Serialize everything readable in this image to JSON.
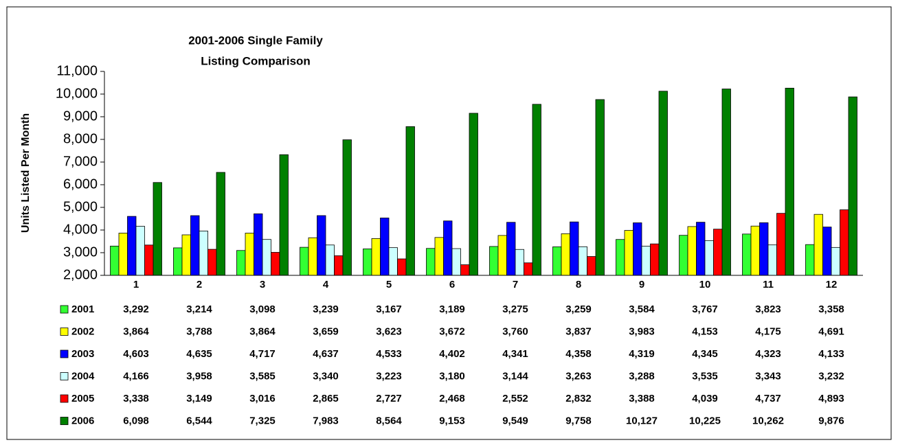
{
  "chart_data": {
    "type": "bar",
    "title": [
      "2001-2006 Single Family",
      "Listing Comparison"
    ],
    "y_label": "Units Listed Per Month",
    "categories": [
      "1",
      "2",
      "3",
      "4",
      "5",
      "6",
      "7",
      "8",
      "9",
      "10",
      "11",
      "12"
    ],
    "ylim": [
      2000,
      11000
    ],
    "yticks": [
      {
        "value": 2000,
        "label": "2,000"
      },
      {
        "value": 3000,
        "label": "3,000"
      },
      {
        "value": 4000,
        "label": "4,000"
      },
      {
        "value": 5000,
        "label": "5,000"
      },
      {
        "value": 6000,
        "label": "6,000"
      },
      {
        "value": 7000,
        "label": "7,000"
      },
      {
        "value": 8000,
        "label": "8,000"
      },
      {
        "value": 9000,
        "label": "9,000"
      },
      {
        "value": 10000,
        "label": "10,000"
      },
      {
        "value": 11000,
        "label": "11,000"
      }
    ],
    "grid": false,
    "series": [
      {
        "name": "2001",
        "color": "#33ff33",
        "values": [
          3292,
          3214,
          3098,
          3239,
          3167,
          3189,
          3275,
          3259,
          3584,
          3767,
          3823,
          3358
        ],
        "value_labels": [
          "3,292",
          "3,214",
          "3,098",
          "3,239",
          "3,167",
          "3,189",
          "3,275",
          "3,259",
          "3,584",
          "3,767",
          "3,823",
          "3,358"
        ]
      },
      {
        "name": "2002",
        "color": "#ffff00",
        "values": [
          3864,
          3788,
          3864,
          3659,
          3623,
          3672,
          3760,
          3837,
          3983,
          4153,
          4175,
          4691
        ],
        "value_labels": [
          "3,864",
          "3,788",
          "3,864",
          "3,659",
          "3,623",
          "3,672",
          "3,760",
          "3,837",
          "3,983",
          "4,153",
          "4,175",
          "4,691"
        ]
      },
      {
        "name": "2003",
        "color": "#0000ff",
        "values": [
          4603,
          4635,
          4717,
          4637,
          4533,
          4402,
          4341,
          4358,
          4319,
          4345,
          4323,
          4133
        ],
        "value_labels": [
          "4,603",
          "4,635",
          "4,717",
          "4,637",
          "4,533",
          "4,402",
          "4,341",
          "4,358",
          "4,319",
          "4,345",
          "4,323",
          "4,133"
        ]
      },
      {
        "name": "2004",
        "color": "#ccffff",
        "values": [
          4166,
          3958,
          3585,
          3340,
          3223,
          3180,
          3144,
          3263,
          3288,
          3535,
          3343,
          3232
        ],
        "value_labels": [
          "4,166",
          "3,958",
          "3,585",
          "3,340",
          "3,223",
          "3,180",
          "3,144",
          "3,263",
          "3,288",
          "3,535",
          "3,343",
          "3,232"
        ]
      },
      {
        "name": "2005",
        "color": "#ff0000",
        "values": [
          3338,
          3149,
          3016,
          2865,
          2727,
          2468,
          2552,
          2832,
          3388,
          4039,
          4737,
          4893
        ],
        "value_labels": [
          "3,338",
          "3,149",
          "3,016",
          "2,865",
          "2,727",
          "2,468",
          "2,552",
          "2,832",
          "3,388",
          "4,039",
          "4,737",
          "4,893"
        ]
      },
      {
        "name": "2006",
        "color": "#008000",
        "values": [
          6098,
          6544,
          7325,
          7983,
          8564,
          9153,
          9549,
          9758,
          10127,
          10225,
          10262,
          9876
        ],
        "value_labels": [
          "6,098",
          "6,544",
          "7,325",
          "7,983",
          "8,564",
          "9,153",
          "9,549",
          "9,758",
          "10,127",
          "10,225",
          "10,262",
          "9,876"
        ]
      }
    ]
  }
}
